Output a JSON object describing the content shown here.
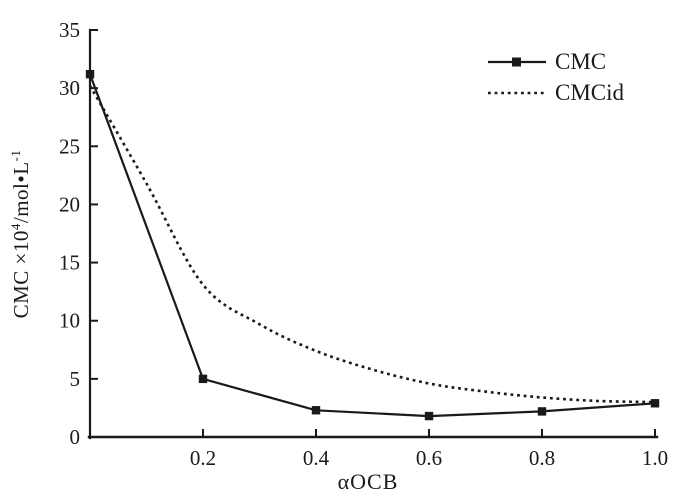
{
  "figure": {
    "background": "#ffffff",
    "ink": "#1a1a1a"
  },
  "chart_data": {
    "type": "line",
    "title": "",
    "xlabel": "αOCB",
    "ylabel": "CMC ×10⁴/mol•L⁻¹",
    "ylabel_parts": {
      "prefix": "CMC ×10",
      "sup1": "4",
      "mid": "/mol•L",
      "sup2": "-1"
    },
    "xlim": [
      0,
      1.0
    ],
    "ylim": [
      0,
      35
    ],
    "grid": false,
    "x_ticks": {
      "values": [
        0.2,
        0.4,
        0.6,
        0.8,
        1.0
      ],
      "labels": [
        "0.2",
        "0.4",
        "0.6",
        "0.8",
        "1.0"
      ]
    },
    "y_ticks": {
      "values": [
        0,
        5,
        10,
        15,
        20,
        25,
        30,
        35
      ],
      "labels": [
        "0",
        "5",
        "10",
        "15",
        "20",
        "25",
        "30",
        "35"
      ]
    },
    "legend": {
      "position": "top-right",
      "items": [
        "CMC",
        "CMCid"
      ]
    },
    "series": [
      {
        "name": "CMC",
        "line_style": "solid",
        "marker": "square",
        "x": [
          0,
          0.2,
          0.4,
          0.6,
          0.8,
          1.0
        ],
        "y": [
          31.2,
          5.0,
          2.3,
          1.8,
          2.2,
          2.9
        ]
      },
      {
        "name": "CMCid",
        "line_style": "dotted",
        "marker": "none",
        "x": [
          0,
          0.1,
          0.2,
          0.3,
          0.4,
          0.5,
          0.6,
          0.7,
          0.8,
          0.9,
          1.0
        ],
        "y": [
          30.2,
          21.8,
          13.1,
          9.7,
          7.4,
          5.8,
          4.6,
          3.9,
          3.4,
          3.1,
          3.0
        ]
      }
    ]
  }
}
